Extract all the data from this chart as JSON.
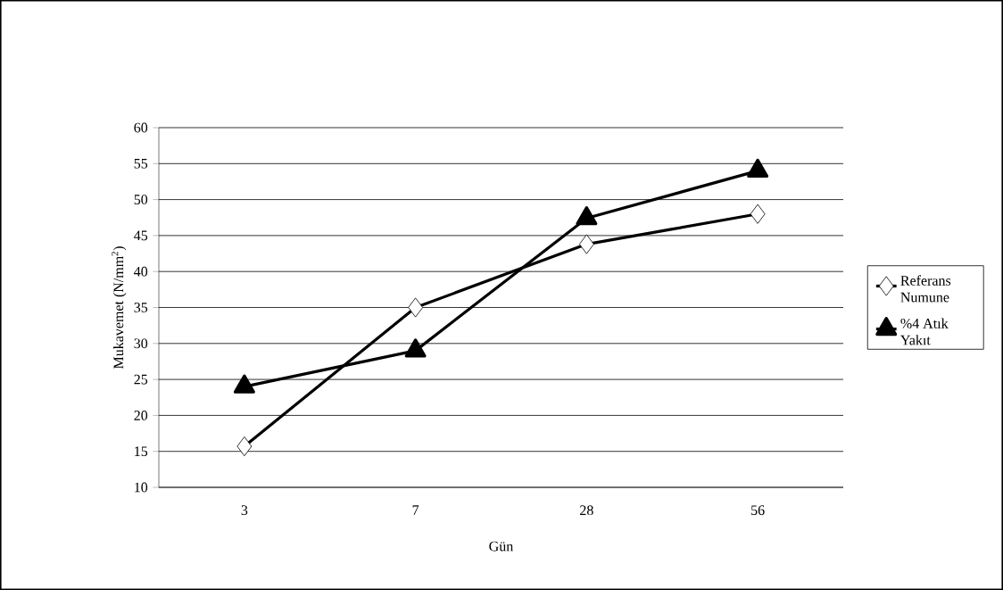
{
  "chart_data": {
    "type": "line",
    "xlabel": "Gün",
    "ylabel": "Mukavemet (N/mm$^{2}$)",
    "categories": [
      "3",
      "7",
      "28",
      "56"
    ],
    "series": [
      {
        "name": "Referans Numune",
        "color": "#000000",
        "marker": "diamond",
        "values": [
          15.7,
          35.0,
          43.8,
          48.0
        ]
      },
      {
        "name": "%4 Atık Yakıt",
        "color": "#000000",
        "marker": "triangle",
        "values": [
          24.0,
          29.0,
          47.4,
          54.0
        ]
      }
    ],
    "ylim": [
      10,
      60
    ],
    "yticks": [
      10,
      15,
      20,
      25,
      30,
      35,
      40,
      45,
      50,
      55,
      60
    ],
    "grid": "y",
    "legend": "right",
    "line_style": "solid"
  }
}
